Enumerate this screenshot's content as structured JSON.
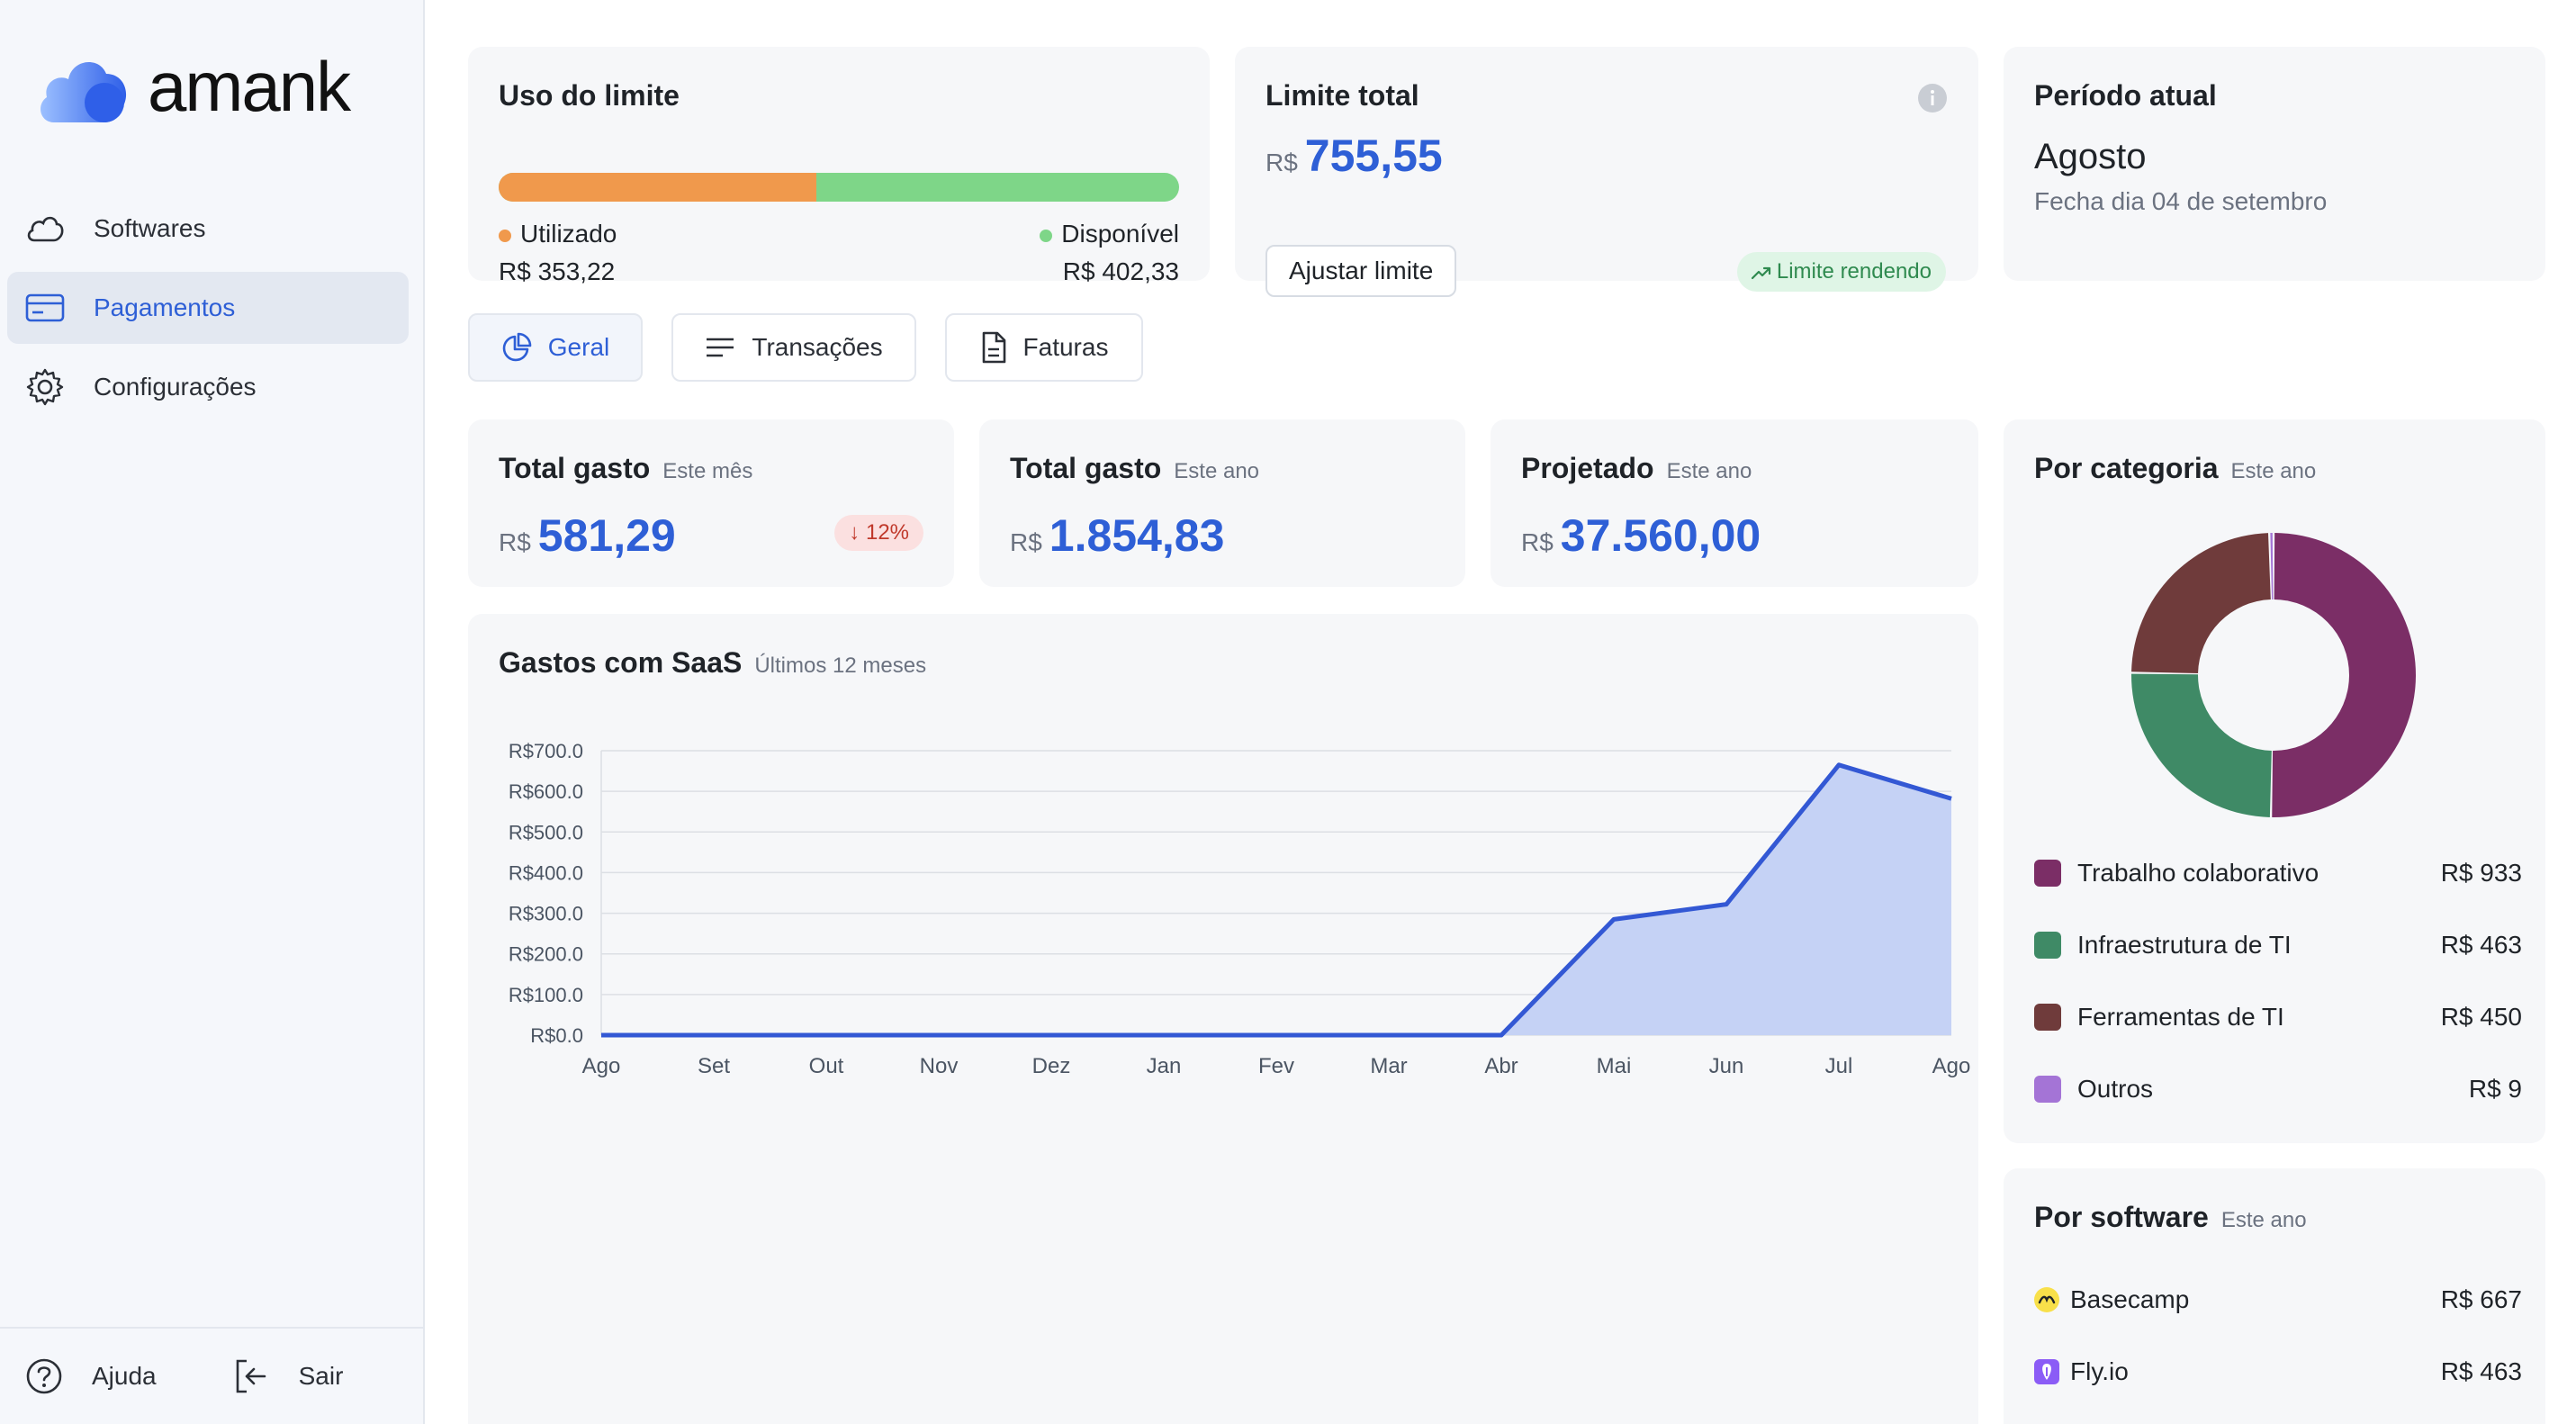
{
  "app": {
    "name": "amank"
  },
  "sidebar": {
    "items": [
      {
        "label": "Softwares"
      },
      {
        "label": "Pagamentos"
      },
      {
        "label": "Configurações"
      }
    ],
    "bottom": {
      "help": "Ajuda",
      "logout": "Sair"
    }
  },
  "usage": {
    "title": "Uso do limite",
    "used_label": "Utilizado",
    "used_value": "R$ 353,22",
    "available_label": "Disponível",
    "available_value": "R$ 402,33",
    "used_fraction": 0.467,
    "colors": {
      "used": "#f0994c",
      "available": "#7ed688"
    }
  },
  "limit": {
    "title": "Limite total",
    "currency": "R$",
    "value": "755,55",
    "button": "Ajustar limite",
    "badge": "Limite rendendo"
  },
  "period": {
    "title": "Período atual",
    "month": "Agosto",
    "closes": "Fecha dia 04 de setembro"
  },
  "tabs": [
    {
      "label": "Geral",
      "active": true
    },
    {
      "label": "Transações",
      "active": false
    },
    {
      "label": "Faturas",
      "active": false
    }
  ],
  "stats": [
    {
      "title": "Total gasto",
      "period": "Este mês",
      "currency": "R$",
      "value": "581,29",
      "badge": "↓ 12%"
    },
    {
      "title": "Total gasto",
      "period": "Este ano",
      "currency": "R$",
      "value": "1.854,83"
    },
    {
      "title": "Projetado",
      "period": "Este ano",
      "currency": "R$",
      "value": "37.560,00"
    }
  ],
  "spend_chart": {
    "title": "Gastos com SaaS",
    "period": "Últimos 12 meses"
  },
  "chart_data": [
    {
      "type": "area",
      "title": "Gastos com SaaS",
      "subtitle": "Últimos 12 meses",
      "categories": [
        "Ago",
        "Set",
        "Out",
        "Nov",
        "Dez",
        "Jan",
        "Fev",
        "Mar",
        "Abr",
        "Mai",
        "Jun",
        "Jul",
        "Ago"
      ],
      "values": [
        0,
        0,
        0,
        0,
        0,
        0,
        0,
        0,
        0,
        285,
        322,
        665,
        582
      ],
      "y_ticks": [
        "R$0.0",
        "R$100.0",
        "R$200.0",
        "R$300.0",
        "R$400.0",
        "R$500.0",
        "R$600.0",
        "R$700.0"
      ],
      "ylim": [
        0,
        700
      ],
      "grid": true,
      "colors": {
        "line": "#3358d4",
        "fill": "#c5d2f5"
      }
    },
    {
      "type": "pie",
      "title": "Por categoria",
      "subtitle": "Este ano",
      "labels": [
        "Trabalho colaborativo",
        "Infraestrutura de TI",
        "Ferramentas de TI",
        "Outros"
      ],
      "values": [
        933,
        463,
        450,
        9
      ],
      "value_labels": [
        "R$ 933",
        "R$ 463",
        "R$ 450",
        "R$ 9"
      ],
      "colors": [
        "#7b2e66",
        "#3f8a66",
        "#6f3b3b",
        "#a474d6"
      ]
    }
  ],
  "software": {
    "title": "Por software",
    "period": "Este ano",
    "items": [
      {
        "name": "Basecamp",
        "value": "R$ 667",
        "icon": "basecamp-icon"
      },
      {
        "name": "Fly.io",
        "value": "R$ 463",
        "icon": "flyio-icon"
      }
    ]
  }
}
